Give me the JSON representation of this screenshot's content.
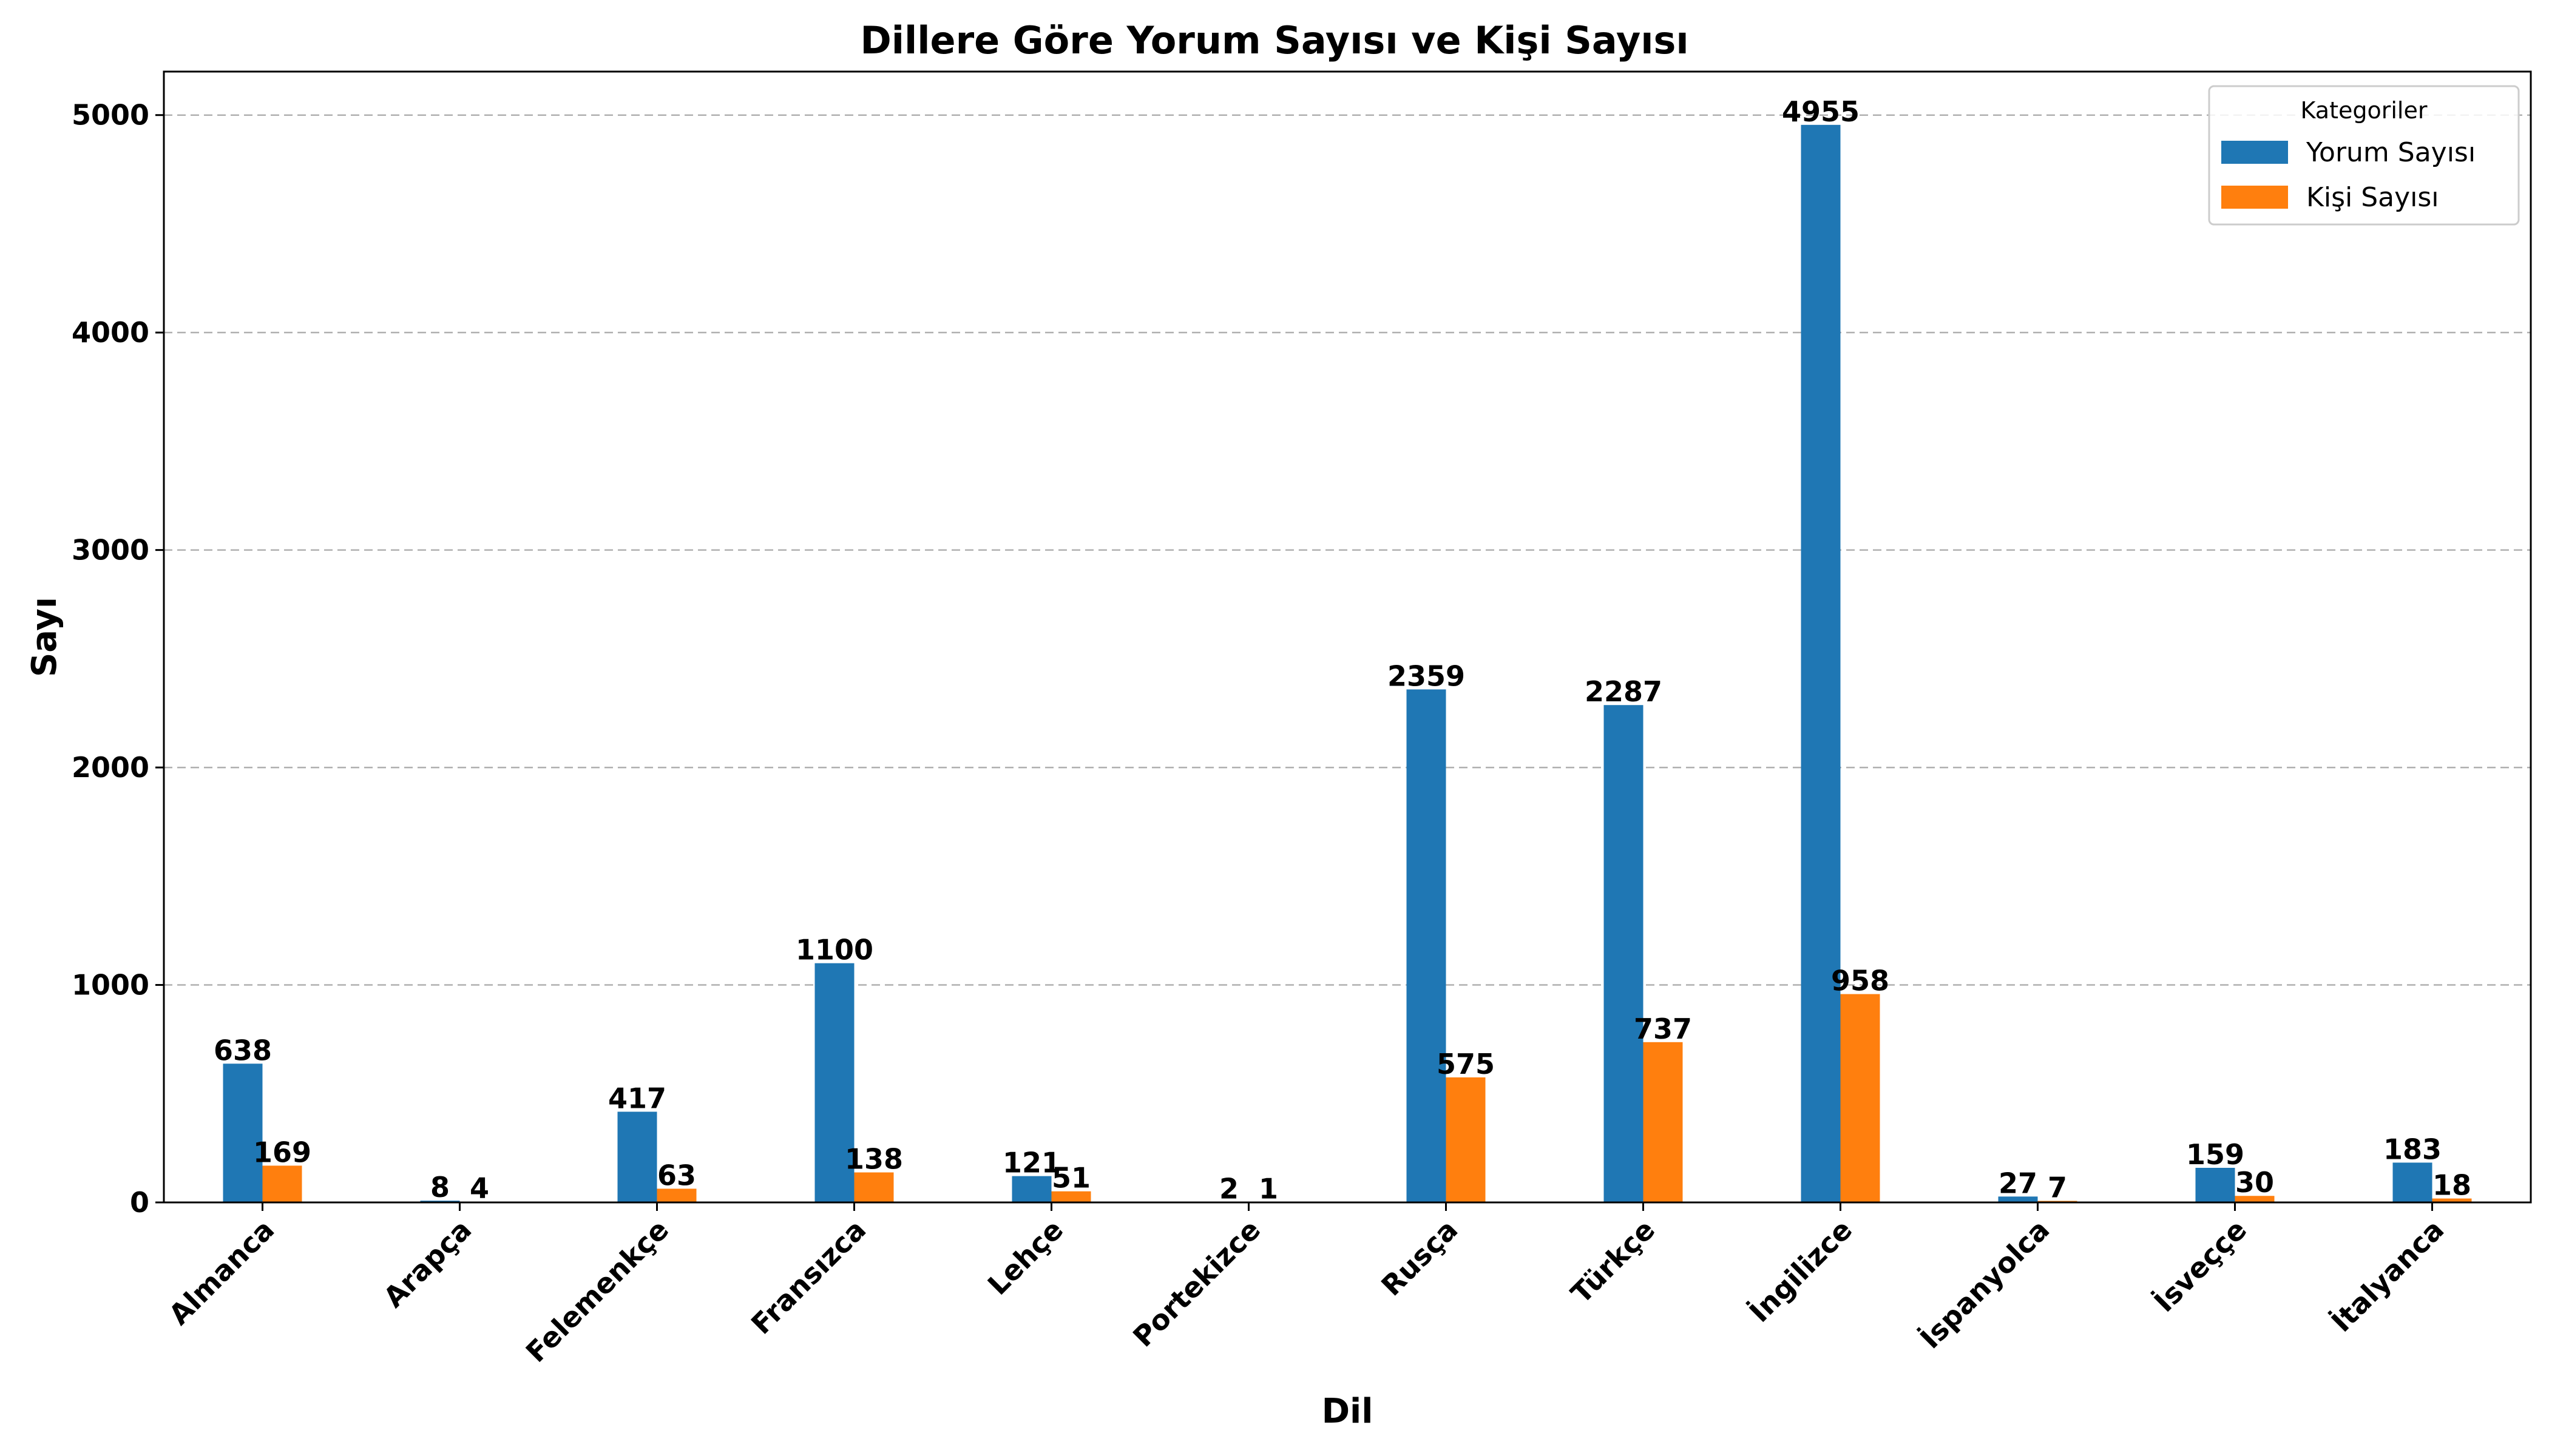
{
  "chart_data": {
    "type": "bar",
    "title": "Dillere Göre Yorum Sayısı ve Kişi Sayısı",
    "xlabel": "Dil",
    "ylabel": "Sayı",
    "ylim": [
      0,
      5200
    ],
    "yticks": [
      0,
      1000,
      2000,
      3000,
      4000,
      5000
    ],
    "grid": "y-dashed",
    "legend_title": "Kategoriler",
    "legend_position": "top-right",
    "categories": [
      "Almanca",
      "Arapça",
      "Felemenkçe",
      "Fransızca",
      "Lehçe",
      "Portekizce",
      "Rusça",
      "Türkçe",
      "İngilizce",
      "İspanyolca",
      "İsveççe",
      "İtalyanca"
    ],
    "series": [
      {
        "name": "Yorum Sayısı",
        "color": "#1f77b4",
        "values": [
          638,
          8,
          417,
          1100,
          121,
          2,
          2359,
          2287,
          4955,
          27,
          159,
          183
        ]
      },
      {
        "name": "Kişi Sayısı",
        "color": "#ff7f0e",
        "values": [
          169,
          4,
          63,
          138,
          51,
          1,
          575,
          737,
          958,
          7,
          30,
          18
        ]
      }
    ]
  }
}
